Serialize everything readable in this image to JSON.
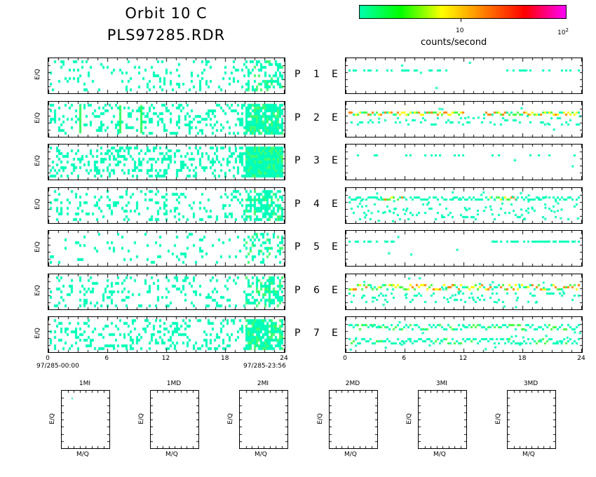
{
  "header": {
    "title_line1": "Orbit 10 C",
    "title_line2": "PLS97285.RDR"
  },
  "colorbar": {
    "colors": [
      "#00ffb0",
      "#00ff00",
      "#ffff00",
      "#ff8000",
      "#ff0000",
      "#ff00ff"
    ],
    "tick_10": "10",
    "tick_100_base": "10",
    "tick_100_exp": "2",
    "label": "counts/second"
  },
  "chart_data": {
    "type": "heatmap",
    "ylabel": "E/Q",
    "x_ticks": [
      "0",
      "6",
      "12",
      "18",
      "24"
    ],
    "xlim": [
      0,
      24
    ],
    "date_start": "97/285-00:00",
    "date_end": "97/285-23:56",
    "rows": [
      {
        "p_label": "P",
        "num": "1",
        "e_label": "E"
      },
      {
        "p_label": "P",
        "num": "2",
        "e_label": "E"
      },
      {
        "p_label": "P",
        "num": "3",
        "e_label": "E"
      },
      {
        "p_label": "P",
        "num": "4",
        "e_label": "E"
      },
      {
        "p_label": "P",
        "num": "5",
        "e_label": "E"
      },
      {
        "p_label": "P",
        "num": "6",
        "e_label": "E"
      },
      {
        "p_label": "P",
        "num": "7",
        "e_label": "E"
      }
    ],
    "bottom_panels": [
      {
        "title": "1MI",
        "ylabel": "E/Q",
        "xlabel": "M/Q"
      },
      {
        "title": "1MD",
        "ylabel": "E/Q",
        "xlabel": "M/Q"
      },
      {
        "title": "2MI",
        "ylabel": "E/Q",
        "xlabel": "M/Q"
      },
      {
        "title": "2MD",
        "ylabel": "E/Q",
        "xlabel": "M/Q"
      },
      {
        "title": "3MI",
        "ylabel": "E/Q",
        "xlabel": "M/Q"
      },
      {
        "title": "3MD",
        "ylabel": "E/Q",
        "xlabel": "M/Q"
      }
    ]
  }
}
